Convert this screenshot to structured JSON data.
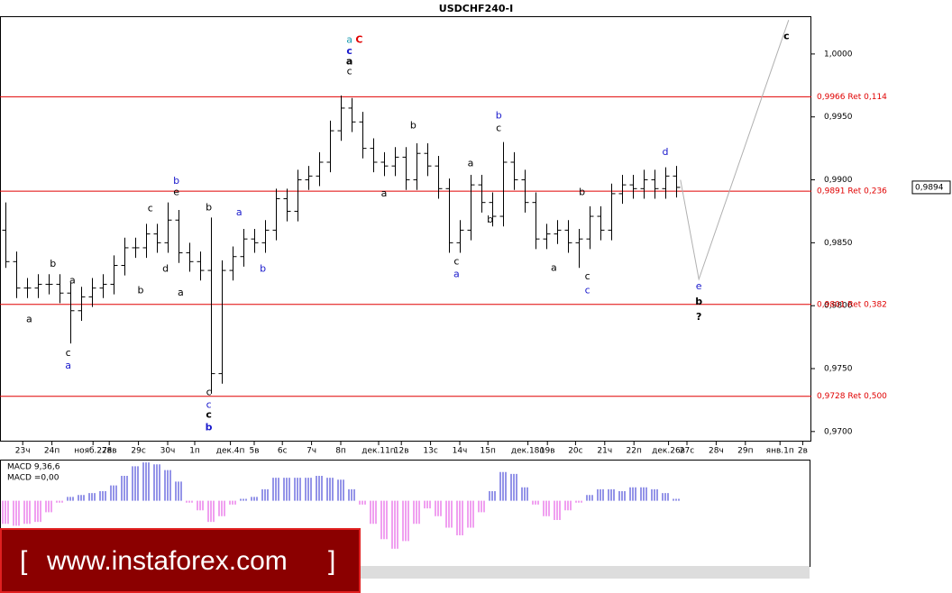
{
  "chart_data": {
    "type": "ohlc",
    "title": "USDCHF240-I",
    "xlim": [
      -0.5,
      74.5
    ],
    "ylim": [
      0.9692,
      1.003
    ],
    "yticks": [
      {
        "value": 0.97,
        "label": "0,9700"
      },
      {
        "value": 0.975,
        "label": "0,9750"
      },
      {
        "value": 0.98,
        "label": "0,9800"
      },
      {
        "value": 0.985,
        "label": "0,9850"
      },
      {
        "value": 0.99,
        "label": "0,9900"
      },
      {
        "value": 0.995,
        "label": "0,9950"
      },
      {
        "value": 1.0,
        "label": "1,0000"
      }
    ],
    "xticks": [
      {
        "value": 1.6,
        "label": "23ч"
      },
      {
        "value": 4.3,
        "label": "24п"
      },
      {
        "value": 8.1,
        "label": "нояб.27в"
      },
      {
        "value": 9.6,
        "label": "28в"
      },
      {
        "value": 12.3,
        "label": "29с"
      },
      {
        "value": 15,
        "label": "30ч"
      },
      {
        "value": 17.5,
        "label": "1п"
      },
      {
        "value": 20.8,
        "label": "дек.4п"
      },
      {
        "value": 23,
        "label": "5в"
      },
      {
        "value": 25.6,
        "label": "6с"
      },
      {
        "value": 28.3,
        "label": "7ч"
      },
      {
        "value": 31,
        "label": "8п"
      },
      {
        "value": 34.5,
        "label": "дек.11п"
      },
      {
        "value": 36.6,
        "label": "12в"
      },
      {
        "value": 39.3,
        "label": "13с"
      },
      {
        "value": 42,
        "label": "14ч"
      },
      {
        "value": 44.6,
        "label": "15п"
      },
      {
        "value": 48.3,
        "label": "дек.18п"
      },
      {
        "value": 50.1,
        "label": "19в"
      },
      {
        "value": 52.7,
        "label": "20с"
      },
      {
        "value": 55.4,
        "label": "21ч"
      },
      {
        "value": 58.1,
        "label": "22п"
      },
      {
        "value": 61.3,
        "label": "дек.26в"
      },
      {
        "value": 63,
        "label": "27с"
      },
      {
        "value": 65.7,
        "label": "28ч"
      },
      {
        "value": 68.4,
        "label": "29п"
      },
      {
        "value": 71.6,
        "label": "янв.1п"
      },
      {
        "value": 73.7,
        "label": "2в"
      }
    ],
    "color": "#000000",
    "open": [
      0.986,
      0.9835,
      0.9814,
      0.9814,
      0.9817,
      0.9817,
      0.981,
      0.9796,
      0.9807,
      0.9814,
      0.9817,
      0.9832,
      0.9846,
      0.9846,
      0.9857,
      0.985,
      0.9868,
      0.9842,
      0.9835,
      0.9828,
      0.9746,
      0.9828,
      0.9839,
      0.9853,
      0.985,
      0.986,
      0.9885,
      0.9875,
      0.99,
      0.9903,
      0.9914,
      0.9939,
      0.9957,
      0.9946,
      0.9925,
      0.9914,
      0.9911,
      0.9918,
      0.99,
      0.9921,
      0.9911,
      0.9893,
      0.985,
      0.986,
      0.9896,
      0.9882,
      0.9871,
      0.9914,
      0.99,
      0.9882,
      0.9853,
      0.9857,
      0.986,
      0.985,
      0.9853,
      0.9871,
      0.986,
      0.9889,
      0.9896,
      0.9893,
      0.99,
      0.9893,
      0.9903
    ],
    "high": [
      0.9882,
      0.9843,
      0.9822,
      0.9825,
      0.9825,
      0.9825,
      0.9818,
      0.9815,
      0.9822,
      0.9825,
      0.984,
      0.9854,
      0.9854,
      0.9865,
      0.9865,
      0.9882,
      0.9876,
      0.985,
      0.9843,
      0.987,
      0.9836,
      0.9847,
      0.9861,
      0.9861,
      0.9868,
      0.9893,
      0.9893,
      0.9908,
      0.9911,
      0.9922,
      0.9947,
      0.9967,
      0.9965,
      0.9954,
      0.9933,
      0.9922,
      0.9926,
      0.9926,
      0.9929,
      0.9929,
      0.9919,
      0.9901,
      0.9868,
      0.9904,
      0.9904,
      0.989,
      0.993,
      0.9922,
      0.9908,
      0.989,
      0.9865,
      0.9868,
      0.9868,
      0.9861,
      0.9879,
      0.9879,
      0.9897,
      0.9904,
      0.9904,
      0.9908,
      0.9908,
      0.991,
      0.9911
    ],
    "low": [
      0.983,
      0.9806,
      0.9806,
      0.9806,
      0.9809,
      0.9802,
      0.977,
      0.9788,
      0.9799,
      0.9806,
      0.9809,
      0.9824,
      0.9838,
      0.9838,
      0.9842,
      0.9842,
      0.9834,
      0.9827,
      0.982,
      0.973,
      0.9738,
      0.982,
      0.9831,
      0.9842,
      0.9842,
      0.9852,
      0.9867,
      0.9867,
      0.9892,
      0.9895,
      0.9906,
      0.9931,
      0.9938,
      0.9917,
      0.9906,
      0.9903,
      0.9903,
      0.9892,
      0.9892,
      0.9903,
      0.9885,
      0.9842,
      0.9842,
      0.9852,
      0.9874,
      0.9863,
      0.9863,
      0.9892,
      0.9874,
      0.9845,
      0.9845,
      0.9849,
      0.9842,
      0.983,
      0.9845,
      0.9852,
      0.9852,
      0.9881,
      0.9885,
      0.9885,
      0.9885,
      0.9885,
      0.9886
    ],
    "close": [
      0.9835,
      0.9814,
      0.9814,
      0.9817,
      0.9817,
      0.981,
      0.9796,
      0.9807,
      0.9814,
      0.9817,
      0.9832,
      0.9846,
      0.9846,
      0.9857,
      0.985,
      0.9868,
      0.9842,
      0.9835,
      0.9828,
      0.9746,
      0.9828,
      0.9839,
      0.9853,
      0.985,
      0.986,
      0.9885,
      0.9875,
      0.99,
      0.9903,
      0.9914,
      0.9939,
      0.9957,
      0.9946,
      0.9925,
      0.9914,
      0.9911,
      0.9918,
      0.99,
      0.9921,
      0.9911,
      0.9893,
      0.985,
      0.986,
      0.9896,
      0.9882,
      0.9871,
      0.9914,
      0.99,
      0.9882,
      0.9853,
      0.9857,
      0.986,
      0.985,
      0.9853,
      0.9871,
      0.986,
      0.9889,
      0.9896,
      0.9893,
      0.99,
      0.9893,
      0.9903,
      0.9894
    ],
    "levels": [
      {
        "value": 0.9966,
        "label": "0,9966 Ret 0,114"
      },
      {
        "value": 0.9891,
        "label": "0,9891 Ret 0,236"
      },
      {
        "value": 0.9801,
        "label": "0,9801 Ret 0,382"
      },
      {
        "value": 0.9728,
        "label": "0,9728 Ret 0,500"
      }
    ],
    "level_color": "#e00000",
    "last_price": {
      "value": 0.9894,
      "label": "0,9894"
    },
    "projection": {
      "color": "#b0b0b0",
      "x": [
        62.4,
        64.1,
        72.4
      ],
      "values": [
        0.99,
        0.9821,
        1.0027
      ]
    },
    "annotations": [
      {
        "text": "b",
        "x": 4.4,
        "y": 0.9833,
        "color": "#000000"
      },
      {
        "text": "a",
        "x": 2.2,
        "y": 0.9789,
        "color": "#000000"
      },
      {
        "text": "a",
        "x": 6.2,
        "y": 0.982,
        "color": "#000000"
      },
      {
        "text": "c",
        "x": 5.8,
        "y": 0.9762,
        "color": "#000000"
      },
      {
        "text": "a",
        "x": 5.8,
        "y": 0.9752,
        "color": "#1a1acc"
      },
      {
        "text": "c",
        "x": 13.4,
        "y": 0.9877,
        "color": "#000000"
      },
      {
        "text": "b",
        "x": 15.8,
        "y": 0.9899,
        "color": "#1a1acc"
      },
      {
        "text": "e",
        "x": 15.8,
        "y": 0.989,
        "color": "#000000"
      },
      {
        "text": "d",
        "x": 14.8,
        "y": 0.9829,
        "color": "#000000"
      },
      {
        "text": "b",
        "x": 12.5,
        "y": 0.9812,
        "color": "#000000"
      },
      {
        "text": "a",
        "x": 16.2,
        "y": 0.981,
        "color": "#000000"
      },
      {
        "text": "b",
        "x": 18.8,
        "y": 0.9878,
        "color": "#000000"
      },
      {
        "text": "a",
        "x": 21.6,
        "y": 0.9874,
        "color": "#1a1acc"
      },
      {
        "text": "b",
        "x": 23.8,
        "y": 0.9829,
        "color": "#1a1acc"
      },
      {
        "text": "c",
        "x": 18.8,
        "y": 0.9731,
        "color": "#000000"
      },
      {
        "text": "c",
        "x": 18.8,
        "y": 0.9721,
        "color": "#1a1acc"
      },
      {
        "text": "c",
        "x": 18.8,
        "y": 0.9713,
        "color": "#000000",
        "bold": true
      },
      {
        "text": "b",
        "x": 18.8,
        "y": 0.9703,
        "color": "#1a1acc",
        "bold": true
      },
      {
        "text": "a",
        "x": 31.8,
        "y": 1.0011,
        "color": "#1a9bb0"
      },
      {
        "text": "C",
        "x": 32.7,
        "y": 1.0011,
        "color": "#e00000",
        "bold": true
      },
      {
        "text": "c",
        "x": 31.8,
        "y": 1.0002,
        "color": "#1a1acc",
        "bold": true
      },
      {
        "text": "a",
        "x": 31.8,
        "y": 0.9994,
        "color": "#000000",
        "bold": true
      },
      {
        "text": "c",
        "x": 31.8,
        "y": 0.9986,
        "color": "#000000"
      },
      {
        "text": "b",
        "x": 37.7,
        "y": 0.9943,
        "color": "#000000"
      },
      {
        "text": "a",
        "x": 35,
        "y": 0.9889,
        "color": "#000000"
      },
      {
        "text": "a",
        "x": 43,
        "y": 0.9913,
        "color": "#000000"
      },
      {
        "text": "c",
        "x": 41.7,
        "y": 0.9835,
        "color": "#000000"
      },
      {
        "text": "a",
        "x": 41.7,
        "y": 0.9825,
        "color": "#1a1acc"
      },
      {
        "text": "b",
        "x": 44.8,
        "y": 0.9868,
        "color": "#000000"
      },
      {
        "text": "b",
        "x": 45.6,
        "y": 0.9951,
        "color": "#1a1acc"
      },
      {
        "text": "c",
        "x": 45.6,
        "y": 0.9941,
        "color": "#000000"
      },
      {
        "text": "b",
        "x": 53.3,
        "y": 0.989,
        "color": "#000000"
      },
      {
        "text": "a",
        "x": 50.7,
        "y": 0.983,
        "color": "#000000"
      },
      {
        "text": "c",
        "x": 53.8,
        "y": 0.9823,
        "color": "#000000"
      },
      {
        "text": "c",
        "x": 53.8,
        "y": 0.9812,
        "color": "#1a1acc"
      },
      {
        "text": "d",
        "x": 61,
        "y": 0.9922,
        "color": "#1a1acc"
      },
      {
        "text": "e",
        "x": 64.1,
        "y": 0.9815,
        "color": "#1a1acc"
      },
      {
        "text": "b",
        "x": 64.1,
        "y": 0.9803,
        "color": "#000000",
        "bold": true
      },
      {
        "text": "?",
        "x": 64.1,
        "y": 0.9791,
        "color": "#000000",
        "bold": true
      },
      {
        "text": "c",
        "x": 72.2,
        "y": 1.0014,
        "color": "#000000",
        "bold": true
      }
    ],
    "macd": {
      "title": "MACD 9,36,6",
      "value_text": "MACD =0,00",
      "ylim": [
        -0.0034,
        0.0021
      ],
      "up_color": "#2a2ad0",
      "down_color": "#e040e0",
      "values": [
        -0.0012,
        -0.0013,
        -0.0012,
        -0.0011,
        -0.0006,
        -0.0001,
        0.0002,
        0.0003,
        0.0004,
        0.0005,
        0.0008,
        0.0013,
        0.0018,
        0.002,
        0.0019,
        0.0016,
        0.001,
        -0.0001,
        -0.0005,
        -0.0011,
        -0.0008,
        -0.0002,
        0.0001,
        0.0002,
        0.0006,
        0.0012,
        0.0012,
        0.0012,
        0.0012,
        0.0013,
        0.0012,
        0.0011,
        0.0006,
        -0.0002,
        -0.0012,
        -0.002,
        -0.0025,
        -0.0021,
        -0.0012,
        -0.0004,
        -0.0008,
        -0.0014,
        -0.0018,
        -0.0014,
        -0.0006,
        0.0005,
        0.0015,
        0.0014,
        0.0007,
        -0.0002,
        -0.0008,
        -0.001,
        -0.0005,
        -0.0001,
        0.0003,
        0.0006,
        0.0006,
        0.0005,
        0.0007,
        0.0007,
        0.0006,
        0.0004,
        0.0001
      ]
    },
    "watermark": {
      "open": "[",
      "text": "www.instaforex.com",
      "close": "]"
    }
  }
}
